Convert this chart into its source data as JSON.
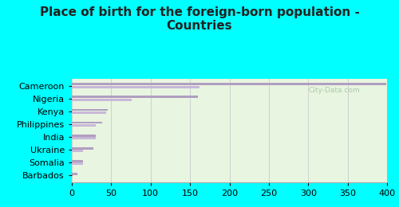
{
  "title": "Place of birth for the foreign-born population -\nCountries",
  "categories": [
    "Cameroon",
    "Nigeria",
    "Kenya",
    "Philippines",
    "India",
    "Ukraine",
    "Somalia",
    "Barbados"
  ],
  "values1": [
    399,
    160,
    46,
    38,
    30,
    27,
    14,
    7
  ],
  "values2": [
    162,
    76,
    44,
    30,
    30,
    14,
    14,
    0
  ],
  "bar_color1": "#b09ec0",
  "bar_color2": "#c8b8d8",
  "background_color": "#00ffff",
  "plot_bg_start": "#e8f5e0",
  "plot_bg_end": "#f5fff5",
  "xlim": [
    0,
    400
  ],
  "xticks": [
    0,
    50,
    100,
    150,
    200,
    250,
    300,
    350,
    400
  ],
  "grid_color": "#d0d0d0",
  "watermark": "City-Data.com",
  "title_fontsize": 11,
  "tick_fontsize": 8,
  "label_fontsize": 8,
  "title_color": "#222222"
}
